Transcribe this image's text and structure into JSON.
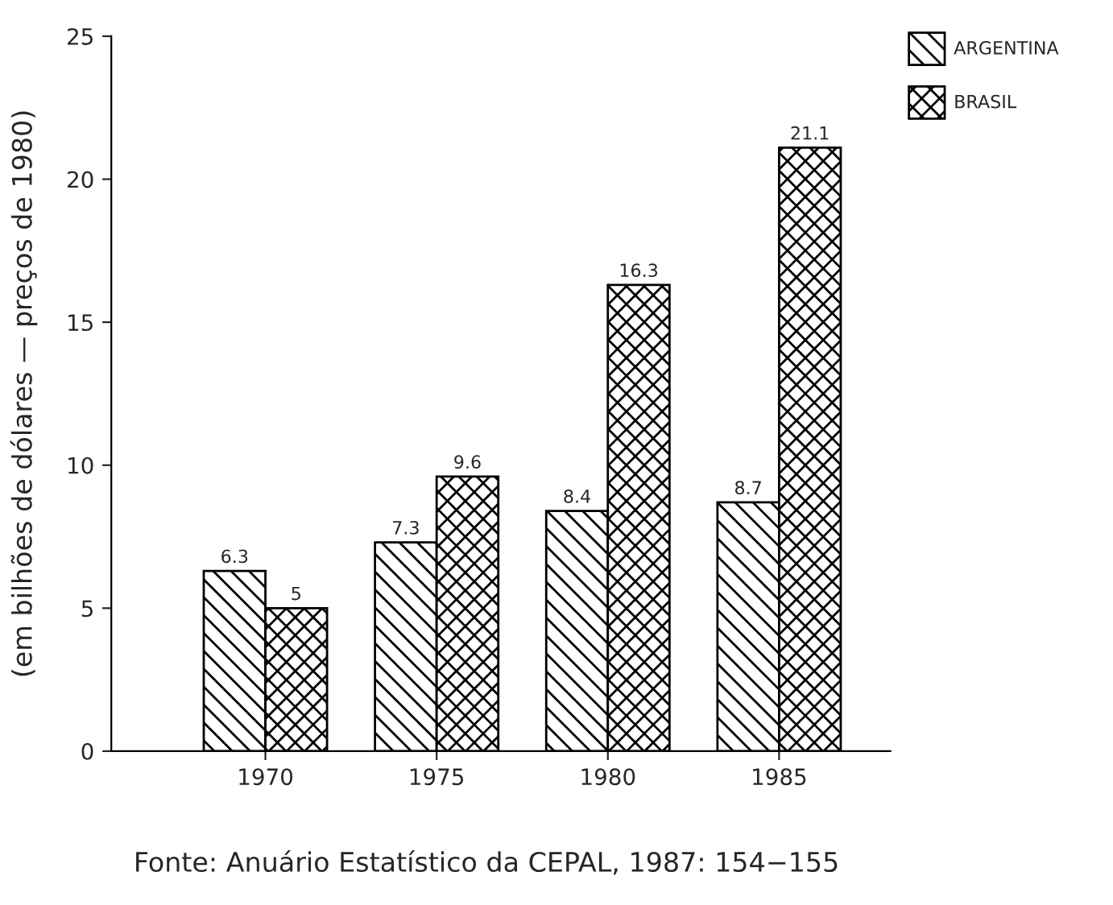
{
  "chart_data": {
    "type": "bar",
    "ylabel": "(em bilhões de dólares — preços de 1980)",
    "categories": [
      "1970",
      "1975",
      "1980",
      "1985"
    ],
    "series": [
      {
        "name": "ARGENTINA",
        "color": "#000000",
        "values": [
          6.3,
          7.3,
          8.4,
          8.7
        ]
      },
      {
        "name": "BRASIL",
        "color": "#000000",
        "values": [
          5,
          9.6,
          16.3,
          21.1
        ]
      }
    ],
    "ylim": [
      0,
      25
    ],
    "yticks": [
      0,
      5,
      10,
      15,
      20,
      25
    ],
    "data_labels": true,
    "grid": false,
    "legend": "top right",
    "annotations": [
      "Fonte: Anuário Estatístico da CEPAL, 1987: 154−155"
    ]
  }
}
